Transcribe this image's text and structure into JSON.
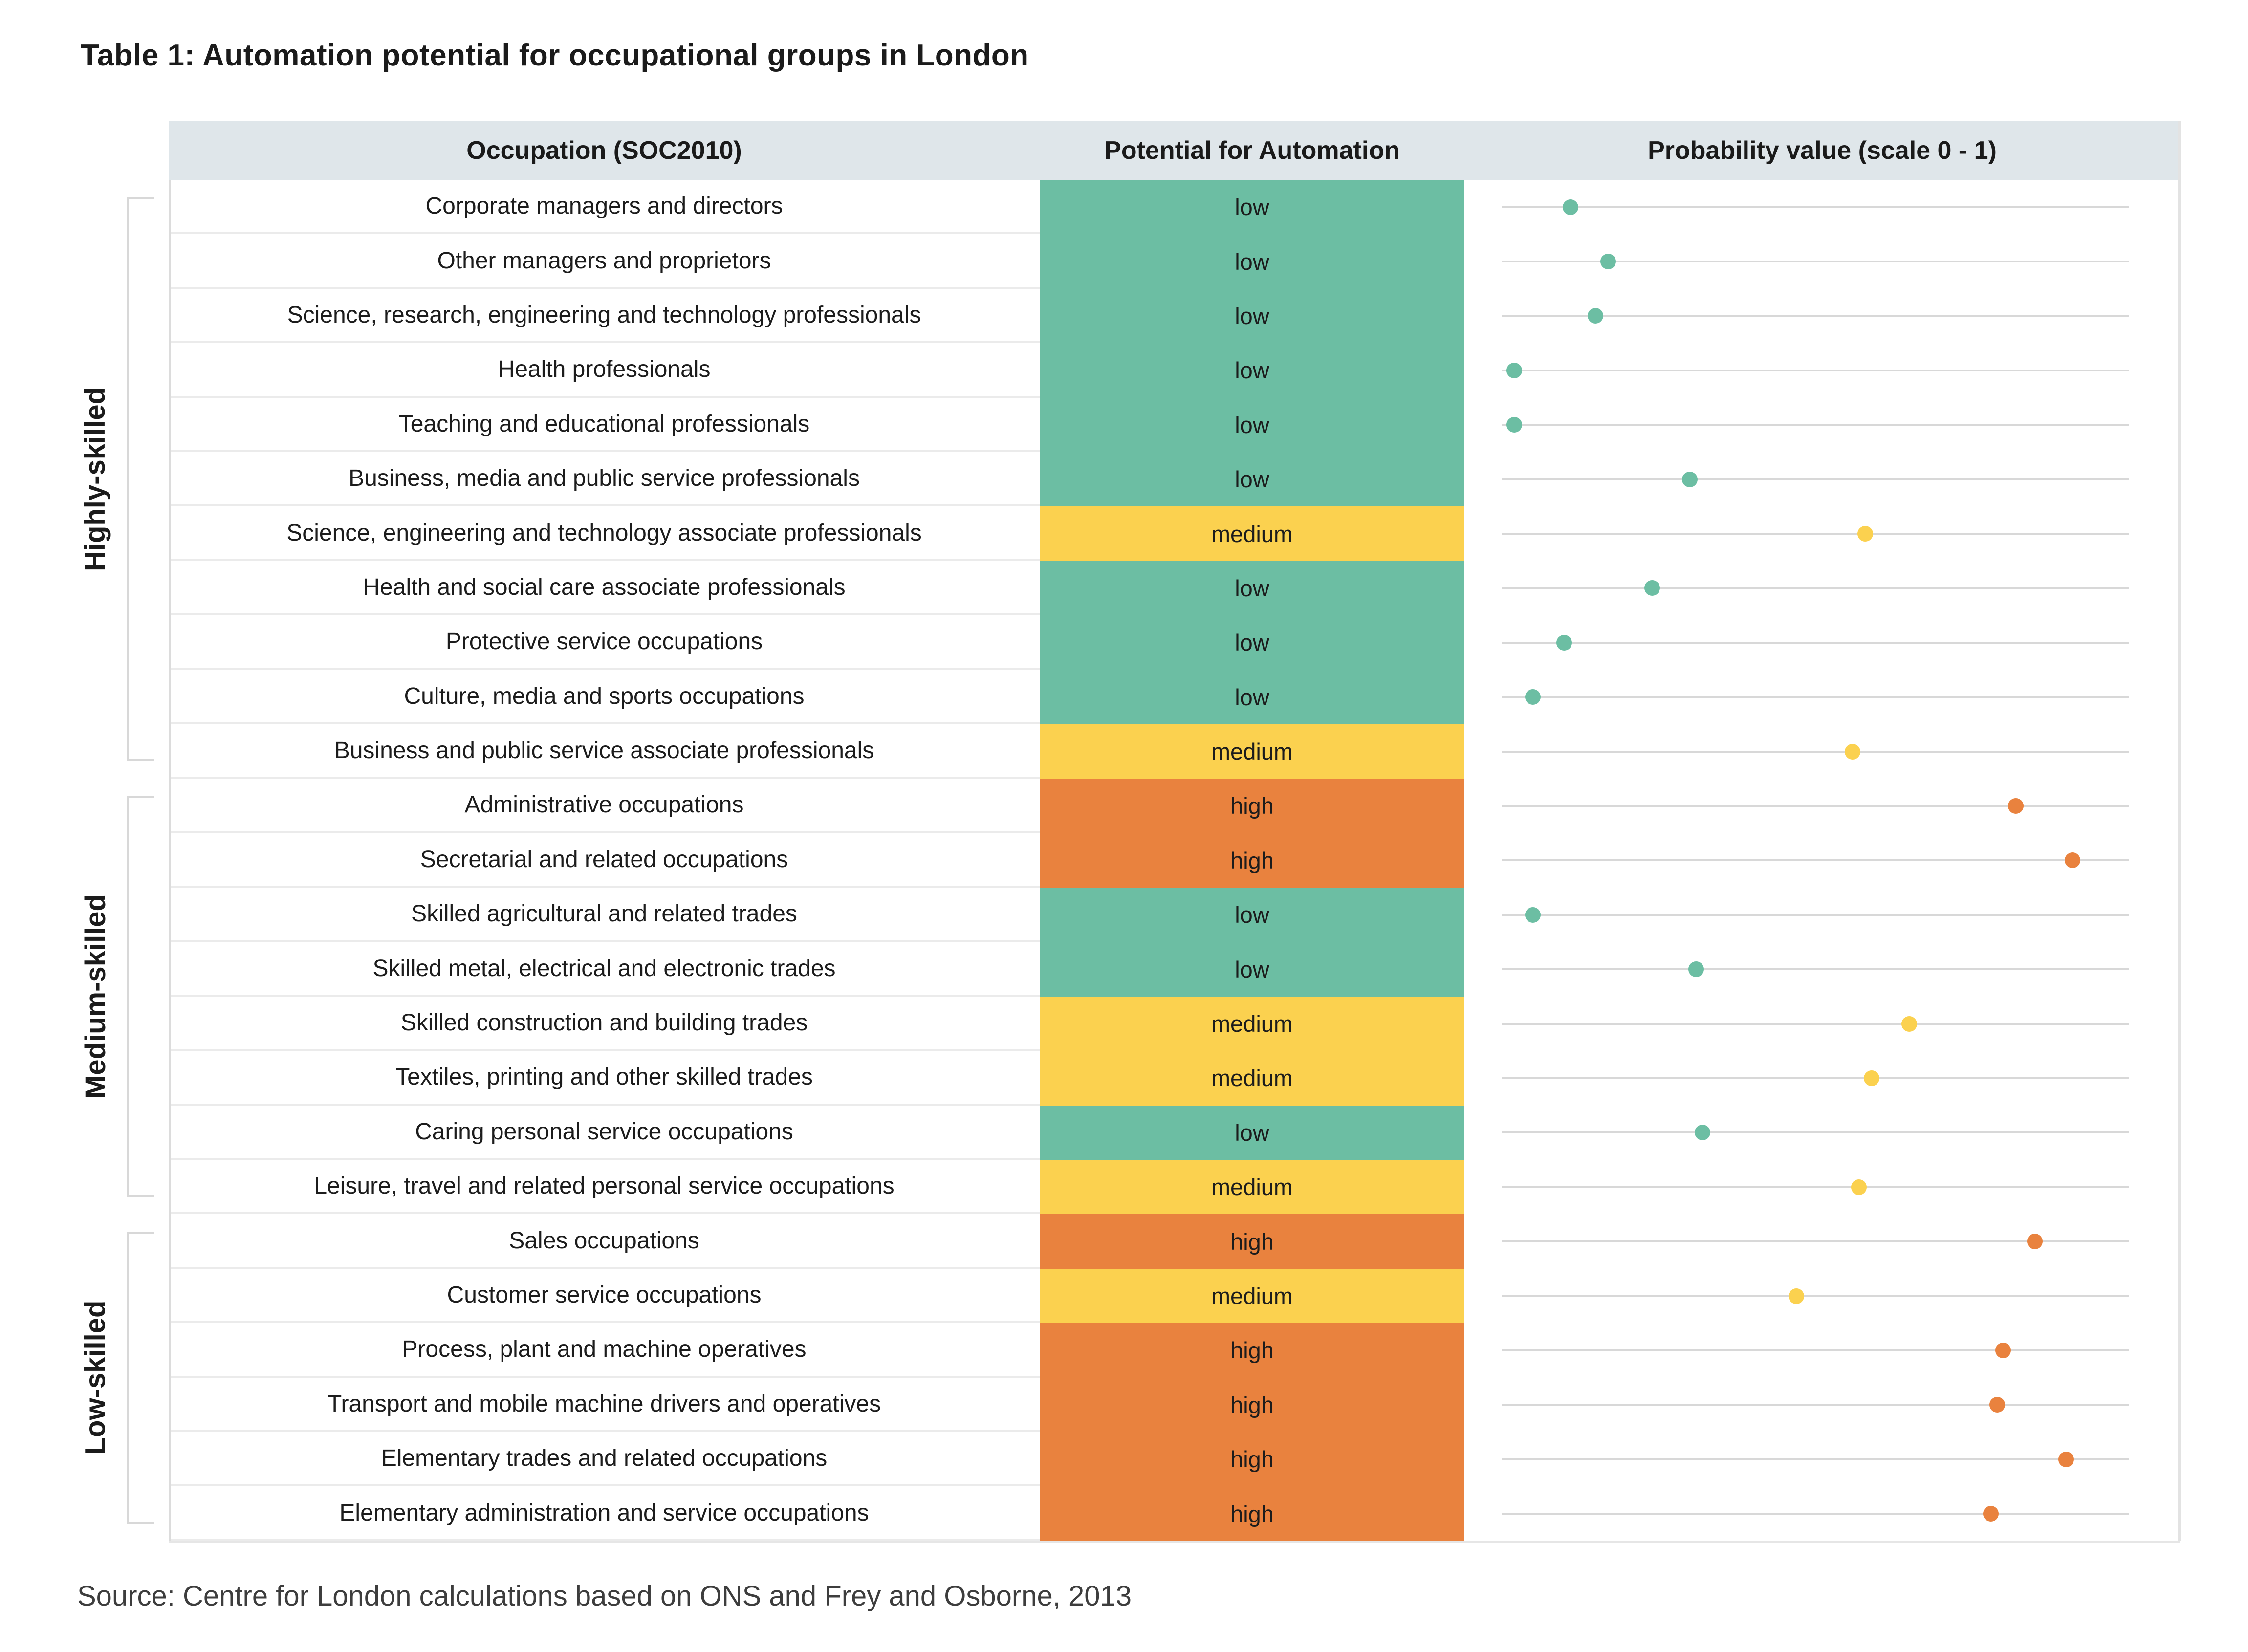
{
  "title": "Table 1: Automation potential for occupational groups in London",
  "source": "Source: Centre for London calculations based on ONS and Frey and Osborne, 2013",
  "header": {
    "occupation": "Occupation (SOC2010)",
    "potential": "Potential for Automation",
    "probability": "Probability value (scale 0 - 1)"
  },
  "colors": {
    "low": "#6CBEA3",
    "medium": "#FBD14F",
    "high": "#E9823E",
    "header_bg": "#DFE6EA",
    "scale_line": "#D8D8D8",
    "bracket": "#D8D8D8"
  },
  "groups": [
    {
      "label": "Highly-skilled",
      "row_start": 1,
      "row_end": 11
    },
    {
      "label": "Medium-skilled",
      "row_start": 12,
      "row_end": 19
    },
    {
      "label": "Low-skilled",
      "row_start": 20,
      "row_end": 25
    }
  ],
  "chart_data": {
    "type": "table",
    "title": "Table 1: Automation potential for occupational groups in London",
    "columns": [
      "Occupation (SOC2010)",
      "Potential for Automation",
      "Probability value (scale 0 - 1)"
    ],
    "probability_axis": {
      "min": 0,
      "max": 1,
      "grid": "per-row horizontal line"
    },
    "legend_position": "none",
    "rows": [
      {
        "occupation": "Corporate managers and directors",
        "potential": "low",
        "probability": 0.11
      },
      {
        "occupation": "Other managers and proprietors",
        "potential": "low",
        "probability": 0.17
      },
      {
        "occupation": "Science, research, engineering and technology professionals",
        "potential": "low",
        "probability": 0.15
      },
      {
        "occupation": "Health professionals",
        "potential": "low",
        "probability": 0.02
      },
      {
        "occupation": "Teaching and educational professionals",
        "potential": "low",
        "probability": 0.02
      },
      {
        "occupation": "Business, media and public service professionals",
        "potential": "low",
        "probability": 0.3
      },
      {
        "occupation": "Science, engineering and technology associate professionals",
        "potential": "medium",
        "probability": 0.58
      },
      {
        "occupation": "Health and social care associate professionals",
        "potential": "low",
        "probability": 0.24
      },
      {
        "occupation": "Protective service occupations",
        "potential": "low",
        "probability": 0.1
      },
      {
        "occupation": "Culture, media and sports occupations",
        "potential": "low",
        "probability": 0.05
      },
      {
        "occupation": "Business and public service associate professionals",
        "potential": "medium",
        "probability": 0.56
      },
      {
        "occupation": "Administrative occupations",
        "potential": "high",
        "probability": 0.82
      },
      {
        "occupation": "Secretarial and related occupations",
        "potential": "high",
        "probability": 0.91
      },
      {
        "occupation": "Skilled agricultural and related trades",
        "potential": "low",
        "probability": 0.05
      },
      {
        "occupation": "Skilled metal, electrical and electronic trades",
        "potential": "low",
        "probability": 0.31
      },
      {
        "occupation": "Skilled construction and building trades",
        "potential": "medium",
        "probability": 0.65
      },
      {
        "occupation": "Textiles, printing and other skilled trades",
        "potential": "medium",
        "probability": 0.59
      },
      {
        "occupation": "Caring personal service occupations",
        "potential": "low",
        "probability": 0.32
      },
      {
        "occupation": "Leisure, travel and related personal service occupations",
        "potential": "medium",
        "probability": 0.57
      },
      {
        "occupation": "Sales occupations",
        "potential": "high",
        "probability": 0.85
      },
      {
        "occupation": "Customer service occupations",
        "potential": "medium",
        "probability": 0.47
      },
      {
        "occupation": "Process, plant and machine operatives",
        "potential": "high",
        "probability": 0.8
      },
      {
        "occupation": "Transport and mobile machine drivers and operatives",
        "potential": "high",
        "probability": 0.79
      },
      {
        "occupation": "Elementary trades and related occupations",
        "potential": "high",
        "probability": 0.9
      },
      {
        "occupation": "Elementary administration and service occupations",
        "potential": "high",
        "probability": 0.78
      }
    ]
  }
}
